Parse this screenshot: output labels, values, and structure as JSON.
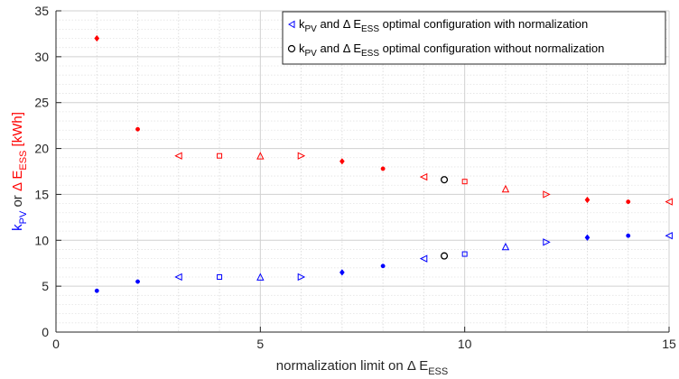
{
  "chart_data": {
    "type": "scatter",
    "xlim": [
      0,
      15
    ],
    "ylim": [
      0,
      35
    ],
    "xticks": [
      0,
      5,
      10,
      15
    ],
    "yticks": [
      0,
      5,
      10,
      15,
      20,
      25,
      30,
      35
    ],
    "grid": true,
    "minor_grid": true,
    "legend_position": "top-right",
    "xlabel": {
      "prefix": "normalization limit on Δ E",
      "sub": "ESS"
    },
    "ylabel": {
      "part1": "k",
      "part1_sub": "PV",
      "part1_color": "#0000ff",
      "middle": " or ",
      "middle_color": "#262626",
      "part2": "Δ E",
      "part2_sub": "ESS",
      "part2_suffix": " [kWh]",
      "part2_color": "#ff0000"
    },
    "legend": [
      {
        "text_pre": "k",
        "text_sub1": "PV",
        "text_mid": " and Δ E",
        "text_sub2": "ESS",
        "text_post": " optimal configuration with normalization",
        "marker": "triangle-left",
        "color": "#0000ff"
      },
      {
        "text_pre": "k",
        "text_sub1": "PV",
        "text_mid": " and Δ E",
        "text_sub2": "ESS",
        "text_post": " optimal configuration without normalization",
        "marker": "circle",
        "color": "#000000"
      }
    ],
    "series": [
      {
        "color": "#0000ff",
        "points": [
          {
            "x": 1,
            "y": 4.5,
            "marker": "dot"
          },
          {
            "x": 2,
            "y": 5.5,
            "marker": "dot"
          },
          {
            "x": 3,
            "y": 6.0,
            "marker": "triangle-left"
          },
          {
            "x": 4,
            "y": 6.0,
            "marker": "square"
          },
          {
            "x": 5,
            "y": 6.0,
            "marker": "triangle-up"
          },
          {
            "x": 6,
            "y": 6.0,
            "marker": "triangle-right"
          },
          {
            "x": 7,
            "y": 6.5,
            "marker": "diamond"
          },
          {
            "x": 8,
            "y": 7.2,
            "marker": "dot"
          },
          {
            "x": 9,
            "y": 8.0,
            "marker": "triangle-left"
          },
          {
            "x": 10,
            "y": 8.5,
            "marker": "square"
          },
          {
            "x": 11,
            "y": 9.3,
            "marker": "triangle-up"
          },
          {
            "x": 12,
            "y": 9.8,
            "marker": "triangle-right"
          },
          {
            "x": 13,
            "y": 10.3,
            "marker": "diamond"
          },
          {
            "x": 14,
            "y": 10.5,
            "marker": "dot"
          },
          {
            "x": 15,
            "y": 10.5,
            "marker": "triangle-left"
          }
        ]
      },
      {
        "color": "#ff0000",
        "points": [
          {
            "x": 1,
            "y": 32.0,
            "marker": "diamond"
          },
          {
            "x": 2,
            "y": 22.1,
            "marker": "dot"
          },
          {
            "x": 3,
            "y": 19.2,
            "marker": "triangle-left"
          },
          {
            "x": 4,
            "y": 19.2,
            "marker": "square"
          },
          {
            "x": 5,
            "y": 19.2,
            "marker": "triangle-up"
          },
          {
            "x": 6,
            "y": 19.2,
            "marker": "triangle-right"
          },
          {
            "x": 7,
            "y": 18.6,
            "marker": "diamond"
          },
          {
            "x": 8,
            "y": 17.8,
            "marker": "dot"
          },
          {
            "x": 9,
            "y": 16.9,
            "marker": "triangle-left"
          },
          {
            "x": 10,
            "y": 16.4,
            "marker": "square"
          },
          {
            "x": 11,
            "y": 15.6,
            "marker": "triangle-up"
          },
          {
            "x": 12,
            "y": 15.0,
            "marker": "triangle-right"
          },
          {
            "x": 13,
            "y": 14.4,
            "marker": "diamond"
          },
          {
            "x": 14,
            "y": 14.2,
            "marker": "dot"
          },
          {
            "x": 15,
            "y": 14.2,
            "marker": "triangle-left"
          }
        ]
      },
      {
        "color": "#000000",
        "points": [
          {
            "x": 9.5,
            "y": 16.6,
            "marker": "circle"
          },
          {
            "x": 9.5,
            "y": 8.3,
            "marker": "circle"
          }
        ]
      }
    ]
  }
}
